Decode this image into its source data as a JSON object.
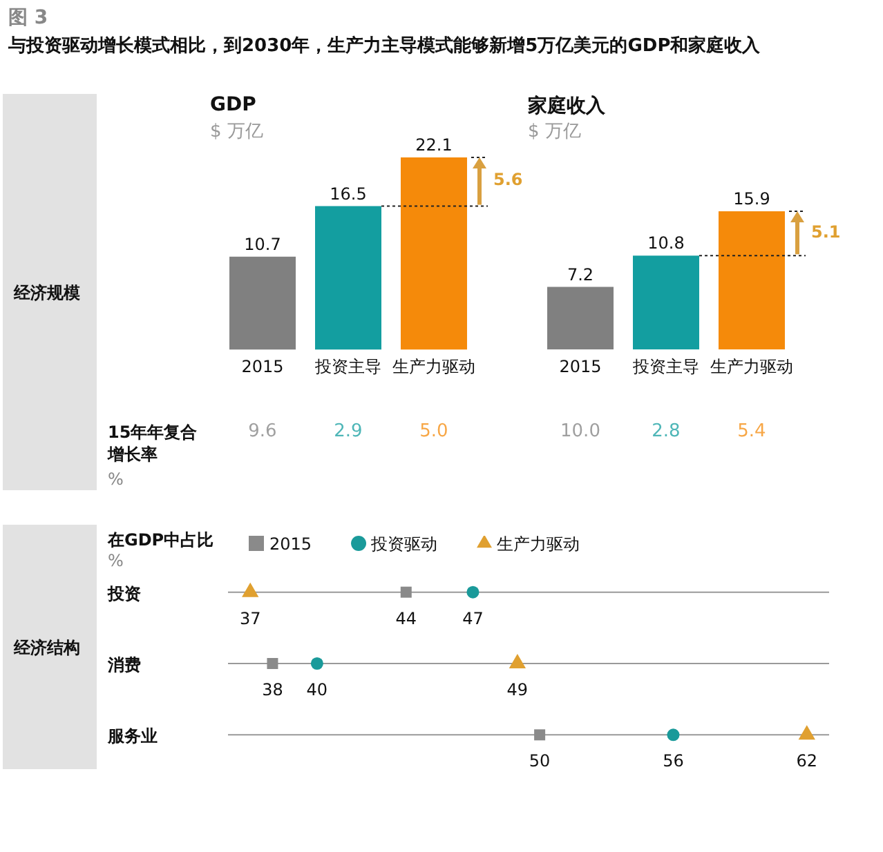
{
  "chart_data": [
    {
      "type": "bar",
      "title": "GDP",
      "subtitle": "$ 万亿",
      "categories": [
        "2015",
        "投资主导",
        "生产力驱动"
      ],
      "values": [
        10.7,
        16.5,
        22.1
      ],
      "colors": [
        "#808080",
        "#139ea0",
        "#f58a0a"
      ],
      "data_labels": true,
      "annotations": [
        "图 3",
        "与投资驱动增长模式相比，到2030年，生产力主导模式能够新增5万亿美元的GDP和家庭收入",
        "经济规模",
        "15年年复合增长率",
        "%",
        "5.6",
        "9.6",
        "2.9",
        "5.0"
      ]
    },
    {
      "type": "bar",
      "title": "家庭收入",
      "subtitle": "$ 万亿",
      "categories": [
        "2015",
        "投资主导",
        "生产力驱动"
      ],
      "values": [
        7.2,
        10.8,
        15.9
      ],
      "colors": [
        "#808080",
        "#139ea0",
        "#f58a0a"
      ],
      "data_labels": true,
      "annotations": [
        "5.1",
        "10.0",
        "2.8",
        "5.4"
      ]
    },
    {
      "type": "scatter",
      "title": "在GDP中占比",
      "subtitle": "%",
      "orientation": "horizontal",
      "categories": [
        "投资",
        "消费",
        "服务业"
      ],
      "xlim": [
        36,
        63
      ],
      "tick_labels": "y",
      "grid": "y",
      "legend": "top",
      "data_labels": true,
      "series": [
        {
          "name": "2015",
          "color": "#8a8a8a",
          "marker": "square",
          "values": [
            44,
            38,
            50
          ]
        },
        {
          "name": "投资驱动",
          "color": "#1a9a9a",
          "marker": "circle",
          "values": [
            47,
            40,
            56
          ]
        },
        {
          "name": "生产力驱动",
          "color": "#e0a030",
          "marker": "triangle",
          "values": [
            37,
            49,
            62
          ]
        }
      ],
      "annotations": [
        "经济结构"
      ]
    }
  ]
}
